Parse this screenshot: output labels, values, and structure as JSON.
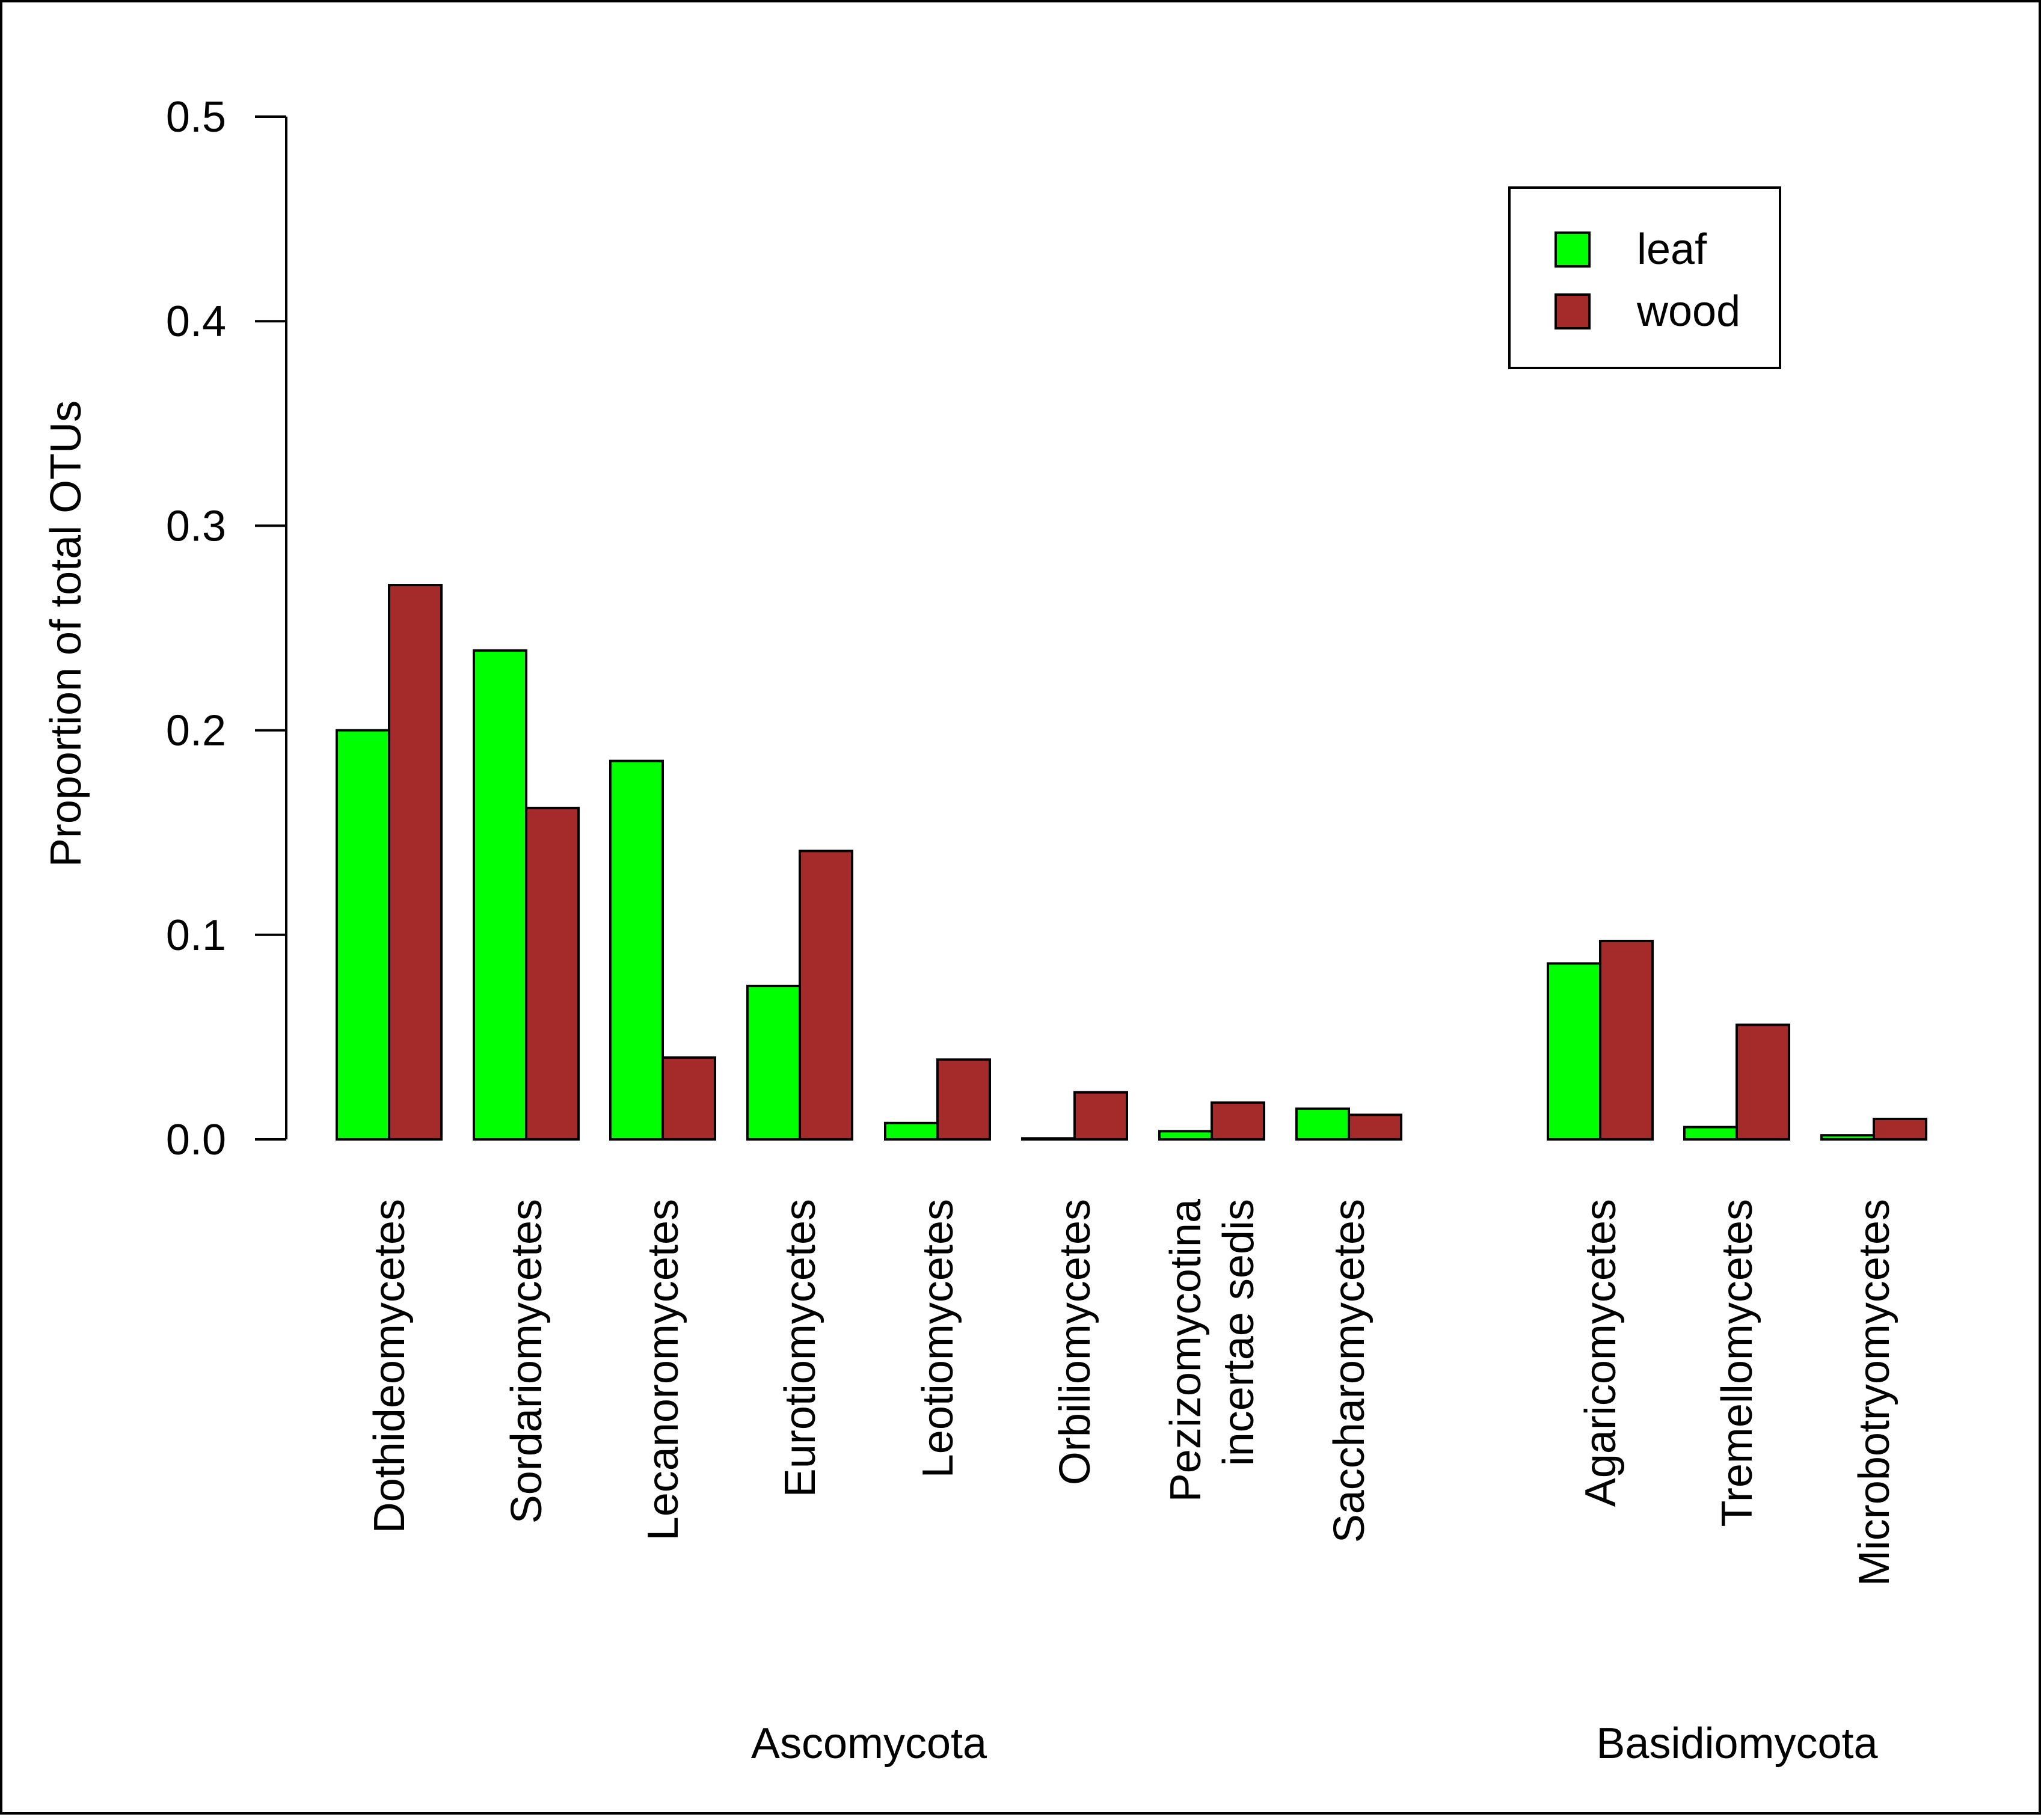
{
  "chart_data": {
    "type": "bar",
    "ylabel": "Proportion of total OTUs",
    "ylim": [
      0,
      0.5
    ],
    "yticks": [
      "0.0",
      "0.1",
      "0.2",
      "0.3",
      "0.4",
      "0.5"
    ],
    "grid": false,
    "legend_position": "top-right",
    "categories": [
      [
        "Dothideomycetes"
      ],
      [
        "Sordariomycetes"
      ],
      [
        "Lecanoromycetes"
      ],
      [
        "Eurotiomycetes"
      ],
      [
        "Leotiomycetes"
      ],
      [
        "Orbiliomycetes"
      ],
      [
        "Pezizomycotina",
        "incertae sedis"
      ],
      [
        "Saccharomycetes"
      ],
      [
        "Agaricomycetes"
      ],
      [
        "Tremellomycetes"
      ],
      [
        "Microbotryomycetes"
      ]
    ],
    "groups": [
      {
        "label": "Ascomycota",
        "categories": [
          0,
          1,
          2,
          3,
          4,
          5,
          6,
          7
        ]
      },
      {
        "label": "Basidiomycota",
        "categories": [
          8,
          9,
          10
        ]
      }
    ],
    "series": [
      {
        "name": "leaf",
        "color": "#00ff00",
        "values": [
          0.2,
          0.239,
          0.185,
          0.075,
          0.008,
          0.0005,
          0.004,
          0.015,
          0.086,
          0.006,
          0.002
        ]
      },
      {
        "name": "wood",
        "color": "#a52a2a",
        "values": [
          0.271,
          0.162,
          0.04,
          0.141,
          0.039,
          0.023,
          0.018,
          0.012,
          0.097,
          0.056,
          0.01
        ]
      }
    ]
  }
}
